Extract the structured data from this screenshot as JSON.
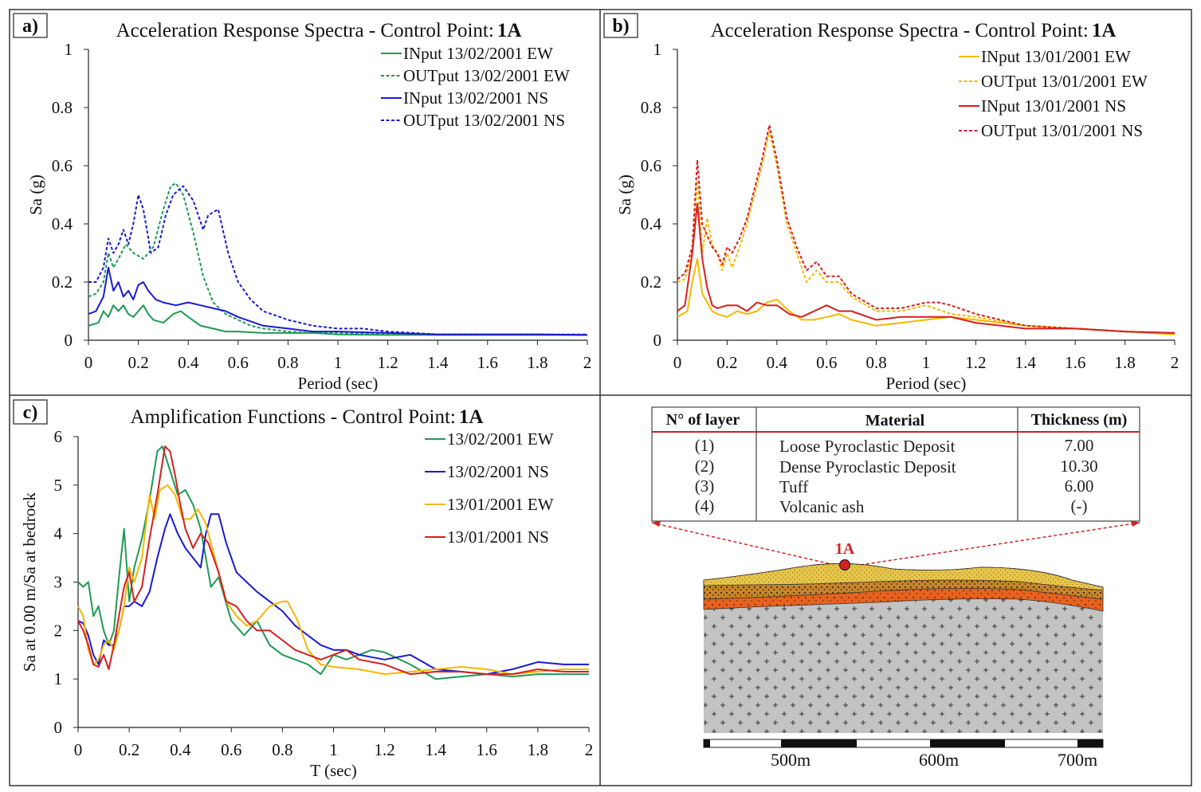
{
  "colors": {
    "green": "#1e9a55",
    "blue": "#1a1ad0",
    "yellow": "#f5b800",
    "red": "#d61f1f",
    "loose": "#e6c54a",
    "dense": "#c9852a",
    "deep": "#e8621e",
    "tuff": "#c3c3c3"
  },
  "chart_data": [
    {
      "id": "a",
      "tag": "a)",
      "type": "line",
      "title": "Acceleration Response Spectra - Control Point:",
      "title_bold": "1A",
      "xlabel": "Period (sec)",
      "ylabel": "Sa (g)",
      "xlim": [
        0,
        2
      ],
      "ylim": [
        0,
        1
      ],
      "xticks": [
        "0",
        "0.2",
        "0.4",
        "0.6",
        "0.8",
        "1",
        "1.2",
        "1.4",
        "1.6",
        "1.8",
        "2"
      ],
      "yticks": [
        "0",
        "0.2",
        "0.4",
        "0.6",
        "0.8",
        "1"
      ],
      "legend_position": "top-right",
      "series": [
        {
          "name": "INput 13/02/2001 EW",
          "color": "green",
          "dash": false,
          "x": [
            0,
            0.04,
            0.06,
            0.08,
            0.1,
            0.12,
            0.14,
            0.16,
            0.18,
            0.2,
            0.22,
            0.24,
            0.26,
            0.3,
            0.34,
            0.37,
            0.4,
            0.45,
            0.5,
            0.55,
            0.6,
            0.7,
            0.8,
            0.9,
            1.0,
            1.2,
            1.4,
            1.6,
            1.8,
            2.0
          ],
          "y": [
            0.05,
            0.06,
            0.1,
            0.08,
            0.12,
            0.1,
            0.12,
            0.09,
            0.08,
            0.1,
            0.12,
            0.09,
            0.07,
            0.06,
            0.09,
            0.1,
            0.08,
            0.05,
            0.04,
            0.03,
            0.03,
            0.025,
            0.025,
            0.025,
            0.02,
            0.018,
            0.018,
            0.018,
            0.018,
            0.018
          ]
        },
        {
          "name": "OUTput 13/02/2001 EW",
          "color": "green",
          "dash": true,
          "x": [
            0,
            0.03,
            0.06,
            0.08,
            0.1,
            0.12,
            0.15,
            0.18,
            0.22,
            0.26,
            0.3,
            0.33,
            0.35,
            0.38,
            0.42,
            0.46,
            0.5,
            0.55,
            0.6,
            0.65,
            0.7,
            0.8,
            0.9,
            1.0,
            1.2,
            1.4,
            1.6,
            1.8,
            2.0
          ],
          "y": [
            0.15,
            0.16,
            0.2,
            0.3,
            0.25,
            0.28,
            0.33,
            0.3,
            0.28,
            0.32,
            0.45,
            0.53,
            0.54,
            0.5,
            0.37,
            0.22,
            0.13,
            0.09,
            0.07,
            0.05,
            0.04,
            0.03,
            0.025,
            0.025,
            0.02,
            0.02,
            0.02,
            0.02,
            0.018
          ]
        },
        {
          "name": "INput 13/02/2001 NS",
          "color": "blue",
          "dash": false,
          "x": [
            0,
            0.03,
            0.06,
            0.08,
            0.1,
            0.12,
            0.14,
            0.16,
            0.18,
            0.2,
            0.22,
            0.24,
            0.27,
            0.3,
            0.35,
            0.4,
            0.45,
            0.5,
            0.55,
            0.6,
            0.7,
            0.8,
            0.9,
            1.0,
            1.2,
            1.4,
            1.6,
            1.8,
            2.0
          ],
          "y": [
            0.09,
            0.1,
            0.15,
            0.25,
            0.17,
            0.2,
            0.15,
            0.17,
            0.14,
            0.19,
            0.2,
            0.17,
            0.14,
            0.13,
            0.12,
            0.13,
            0.12,
            0.11,
            0.1,
            0.08,
            0.05,
            0.04,
            0.03,
            0.03,
            0.025,
            0.02,
            0.02,
            0.02,
            0.018
          ]
        },
        {
          "name": "OUTput 13/02/2001 NS",
          "color": "blue",
          "dash": true,
          "x": [
            0,
            0.03,
            0.06,
            0.08,
            0.1,
            0.12,
            0.14,
            0.16,
            0.18,
            0.2,
            0.22,
            0.25,
            0.28,
            0.31,
            0.34,
            0.38,
            0.42,
            0.46,
            0.48,
            0.52,
            0.56,
            0.6,
            0.65,
            0.7,
            0.8,
            0.9,
            1.0,
            1.1,
            1.2,
            1.4,
            1.6,
            1.8,
            2.0
          ],
          "y": [
            0.2,
            0.2,
            0.25,
            0.35,
            0.3,
            0.33,
            0.38,
            0.33,
            0.4,
            0.5,
            0.45,
            0.3,
            0.32,
            0.43,
            0.5,
            0.53,
            0.48,
            0.38,
            0.43,
            0.45,
            0.3,
            0.2,
            0.14,
            0.1,
            0.07,
            0.05,
            0.04,
            0.04,
            0.03,
            0.02,
            0.02,
            0.02,
            0.02
          ]
        }
      ]
    },
    {
      "id": "b",
      "tag": "b)",
      "type": "line",
      "title": "Acceleration Response Spectra - Control Point:",
      "title_bold": "1A",
      "xlabel": "Period (sec)",
      "ylabel": "Sa (g)",
      "xlim": [
        0,
        2
      ],
      "ylim": [
        0,
        1
      ],
      "xticks": [
        "0",
        "0.2",
        "0.4",
        "0.6",
        "0.8",
        "1",
        "1.2",
        "1.4",
        "1.6",
        "1.8",
        "2"
      ],
      "yticks": [
        "0",
        "0.2",
        "0.4",
        "0.6",
        "0.8",
        "1"
      ],
      "legend_position": "top-right",
      "series": [
        {
          "name": "INput 13/01/2001 EW",
          "color": "yellow",
          "dash": false,
          "x": [
            0,
            0.04,
            0.06,
            0.08,
            0.1,
            0.12,
            0.14,
            0.16,
            0.2,
            0.24,
            0.28,
            0.32,
            0.36,
            0.4,
            0.45,
            0.5,
            0.55,
            0.6,
            0.65,
            0.7,
            0.8,
            0.9,
            1.0,
            1.1,
            1.2,
            1.3,
            1.4,
            1.6,
            1.8,
            2.0
          ],
          "y": [
            0.08,
            0.1,
            0.2,
            0.28,
            0.16,
            0.13,
            0.1,
            0.09,
            0.08,
            0.1,
            0.09,
            0.1,
            0.13,
            0.14,
            0.1,
            0.07,
            0.07,
            0.08,
            0.09,
            0.07,
            0.05,
            0.06,
            0.07,
            0.08,
            0.07,
            0.06,
            0.05,
            0.04,
            0.03,
            0.02
          ]
        },
        {
          "name": "OUTput 13/01/2001 EW",
          "color": "yellow",
          "dash": true,
          "x": [
            0,
            0.03,
            0.06,
            0.08,
            0.1,
            0.12,
            0.14,
            0.16,
            0.18,
            0.2,
            0.22,
            0.25,
            0.28,
            0.31,
            0.34,
            0.37,
            0.4,
            0.44,
            0.48,
            0.52,
            0.56,
            0.6,
            0.65,
            0.7,
            0.8,
            0.9,
            1.0,
            1.1,
            1.2,
            1.4,
            1.6,
            1.8,
            2.0
          ],
          "y": [
            0.2,
            0.21,
            0.3,
            0.55,
            0.3,
            0.42,
            0.33,
            0.3,
            0.24,
            0.3,
            0.25,
            0.32,
            0.4,
            0.5,
            0.6,
            0.72,
            0.6,
            0.4,
            0.3,
            0.2,
            0.24,
            0.2,
            0.2,
            0.15,
            0.1,
            0.1,
            0.12,
            0.09,
            0.08,
            0.05,
            0.04,
            0.03,
            0.02
          ]
        },
        {
          "name": "INput 13/01/2001 NS",
          "color": "red",
          "dash": false,
          "x": [
            0,
            0.03,
            0.06,
            0.08,
            0.1,
            0.12,
            0.14,
            0.16,
            0.2,
            0.24,
            0.28,
            0.32,
            0.36,
            0.4,
            0.45,
            0.5,
            0.55,
            0.6,
            0.65,
            0.7,
            0.8,
            0.9,
            1.0,
            1.1,
            1.2,
            1.3,
            1.4,
            1.6,
            1.8,
            2.0
          ],
          "y": [
            0.1,
            0.12,
            0.3,
            0.47,
            0.28,
            0.18,
            0.12,
            0.11,
            0.12,
            0.12,
            0.1,
            0.13,
            0.12,
            0.12,
            0.09,
            0.08,
            0.1,
            0.12,
            0.1,
            0.1,
            0.07,
            0.08,
            0.08,
            0.08,
            0.06,
            0.05,
            0.04,
            0.04,
            0.03,
            0.025
          ]
        },
        {
          "name": "OUTput 13/01/2001 NS",
          "color": "red",
          "dash": true,
          "x": [
            0,
            0.03,
            0.06,
            0.08,
            0.1,
            0.12,
            0.14,
            0.16,
            0.18,
            0.2,
            0.22,
            0.25,
            0.28,
            0.31,
            0.34,
            0.37,
            0.4,
            0.44,
            0.48,
            0.52,
            0.56,
            0.6,
            0.65,
            0.7,
            0.8,
            0.9,
            1.0,
            1.05,
            1.1,
            1.2,
            1.4,
            1.6,
            1.8,
            2.0
          ],
          "y": [
            0.21,
            0.23,
            0.32,
            0.62,
            0.4,
            0.36,
            0.32,
            0.3,
            0.26,
            0.32,
            0.3,
            0.35,
            0.42,
            0.52,
            0.62,
            0.74,
            0.62,
            0.42,
            0.32,
            0.24,
            0.27,
            0.22,
            0.22,
            0.16,
            0.11,
            0.11,
            0.13,
            0.13,
            0.12,
            0.09,
            0.05,
            0.04,
            0.03,
            0.025
          ]
        }
      ]
    },
    {
      "id": "c",
      "tag": "c)",
      "type": "line",
      "title": "Amplification Functions - Control Point:",
      "title_bold": "1A",
      "xlabel": "T (sec)",
      "ylabel": "Sa at 0.00 m/Sa at bedrock",
      "xlim": [
        0,
        2
      ],
      "ylim": [
        0,
        6
      ],
      "xticks": [
        "0",
        "0.2",
        "0.4",
        "0.6",
        "0.8",
        "1",
        "1.2",
        "1.4",
        "1.6",
        "1.8",
        "2"
      ],
      "yticks": [
        "0",
        "1",
        "2",
        "3",
        "4",
        "5",
        "6"
      ],
      "legend_position": "top-right",
      "series": [
        {
          "name": "13/02/2001 EW",
          "color": "green",
          "dash": false,
          "x": [
            0,
            0.02,
            0.04,
            0.06,
            0.08,
            0.1,
            0.12,
            0.14,
            0.16,
            0.18,
            0.2,
            0.22,
            0.25,
            0.28,
            0.31,
            0.33,
            0.36,
            0.39,
            0.42,
            0.45,
            0.48,
            0.52,
            0.55,
            0.6,
            0.65,
            0.7,
            0.75,
            0.8,
            0.85,
            0.9,
            0.95,
            1.0,
            1.05,
            1.1,
            1.15,
            1.2,
            1.3,
            1.4,
            1.5,
            1.6,
            1.7,
            1.8,
            1.9,
            2.0
          ],
          "y": [
            3.0,
            2.9,
            3.0,
            2.3,
            2.5,
            2.0,
            1.7,
            2.0,
            3.1,
            4.1,
            2.6,
            3.3,
            3.9,
            4.7,
            5.7,
            5.8,
            5.3,
            4.8,
            4.9,
            4.6,
            4.1,
            2.9,
            3.1,
            2.2,
            1.9,
            2.2,
            1.7,
            1.5,
            1.4,
            1.3,
            1.1,
            1.5,
            1.4,
            1.5,
            1.6,
            1.55,
            1.3,
            1.0,
            1.05,
            1.1,
            1.05,
            1.1,
            1.1,
            1.1
          ]
        },
        {
          "name": "13/02/2001 NS",
          "color": "blue",
          "dash": false,
          "x": [
            0,
            0.02,
            0.04,
            0.06,
            0.08,
            0.1,
            0.12,
            0.14,
            0.16,
            0.18,
            0.2,
            0.22,
            0.25,
            0.28,
            0.31,
            0.34,
            0.36,
            0.39,
            0.42,
            0.45,
            0.48,
            0.5,
            0.52,
            0.55,
            0.58,
            0.62,
            0.66,
            0.7,
            0.75,
            0.8,
            0.85,
            0.9,
            0.95,
            1.0,
            1.05,
            1.1,
            1.2,
            1.3,
            1.4,
            1.5,
            1.6,
            1.7,
            1.8,
            1.9,
            2.0
          ],
          "y": [
            2.2,
            2.15,
            1.9,
            1.5,
            1.3,
            1.8,
            1.7,
            1.7,
            2.0,
            2.5,
            2.5,
            2.6,
            2.5,
            2.8,
            3.5,
            4.1,
            4.4,
            4.0,
            3.7,
            3.5,
            3.3,
            4.0,
            4.4,
            4.4,
            3.8,
            3.2,
            3.0,
            2.8,
            2.6,
            2.4,
            2.1,
            1.9,
            1.7,
            1.6,
            1.6,
            1.5,
            1.4,
            1.5,
            1.2,
            1.15,
            1.1,
            1.2,
            1.35,
            1.3,
            1.3
          ]
        },
        {
          "name": "13/01/2001 EW",
          "color": "yellow",
          "dash": false,
          "x": [
            0,
            0.02,
            0.04,
            0.06,
            0.08,
            0.1,
            0.12,
            0.14,
            0.16,
            0.18,
            0.2,
            0.22,
            0.25,
            0.28,
            0.3,
            0.32,
            0.35,
            0.38,
            0.41,
            0.44,
            0.47,
            0.5,
            0.54,
            0.58,
            0.62,
            0.66,
            0.7,
            0.75,
            0.8,
            0.82,
            0.86,
            0.9,
            0.95,
            1.0,
            1.1,
            1.2,
            1.3,
            1.4,
            1.5,
            1.6,
            1.7,
            1.8,
            1.9,
            2.0
          ],
          "y": [
            2.5,
            2.3,
            1.6,
            1.3,
            1.4,
            1.7,
            1.8,
            1.6,
            2.0,
            2.5,
            3.3,
            3.0,
            3.5,
            4.8,
            4.3,
            4.9,
            5.0,
            4.8,
            4.3,
            4.3,
            4.5,
            4.2,
            3.4,
            2.6,
            2.3,
            2.1,
            2.2,
            2.5,
            2.6,
            2.6,
            2.2,
            1.6,
            1.3,
            1.25,
            1.2,
            1.1,
            1.15,
            1.2,
            1.25,
            1.2,
            1.1,
            1.15,
            1.2,
            1.2
          ]
        },
        {
          "name": "13/01/2001 NS",
          "color": "red",
          "dash": false,
          "x": [
            0,
            0.02,
            0.04,
            0.06,
            0.08,
            0.1,
            0.12,
            0.14,
            0.16,
            0.18,
            0.2,
            0.22,
            0.25,
            0.28,
            0.31,
            0.34,
            0.36,
            0.38,
            0.4,
            0.42,
            0.45,
            0.48,
            0.51,
            0.55,
            0.58,
            0.62,
            0.66,
            0.7,
            0.75,
            0.8,
            0.85,
            0.9,
            0.95,
            1.0,
            1.05,
            1.1,
            1.2,
            1.3,
            1.4,
            1.5,
            1.6,
            1.7,
            1.8,
            1.9,
            2.0
          ],
          "y": [
            2.2,
            2.0,
            1.7,
            1.3,
            1.25,
            1.5,
            1.2,
            1.7,
            2.3,
            2.9,
            3.2,
            2.6,
            2.9,
            3.9,
            4.8,
            5.8,
            5.7,
            5.2,
            4.6,
            4.1,
            3.7,
            4.0,
            3.8,
            3.2,
            2.6,
            2.5,
            2.2,
            2.0,
            2.0,
            1.8,
            1.6,
            1.5,
            1.4,
            1.5,
            1.6,
            1.4,
            1.3,
            1.1,
            1.15,
            1.15,
            1.1,
            1.1,
            1.2,
            1.15,
            1.15
          ]
        }
      ]
    }
  ],
  "panel_d": {
    "table": {
      "headers": [
        "N° of layer",
        "Material",
        "Thickness (m)"
      ],
      "rows": [
        {
          "num": "(1)",
          "material": "Loose Pyroclastic Deposit",
          "thickness": "7.00"
        },
        {
          "num": "(2)",
          "material": "Dense Pyroclastic Deposit",
          "thickness": "10.30"
        },
        {
          "num": "(3)",
          "material": "Tuff",
          "thickness": "6.00"
        },
        {
          "num": "(4)",
          "material": "Volcanic ash",
          "thickness": "(-)"
        }
      ]
    },
    "point_label": "1A",
    "scale_labels": [
      "500m",
      "600m",
      "700m"
    ]
  }
}
